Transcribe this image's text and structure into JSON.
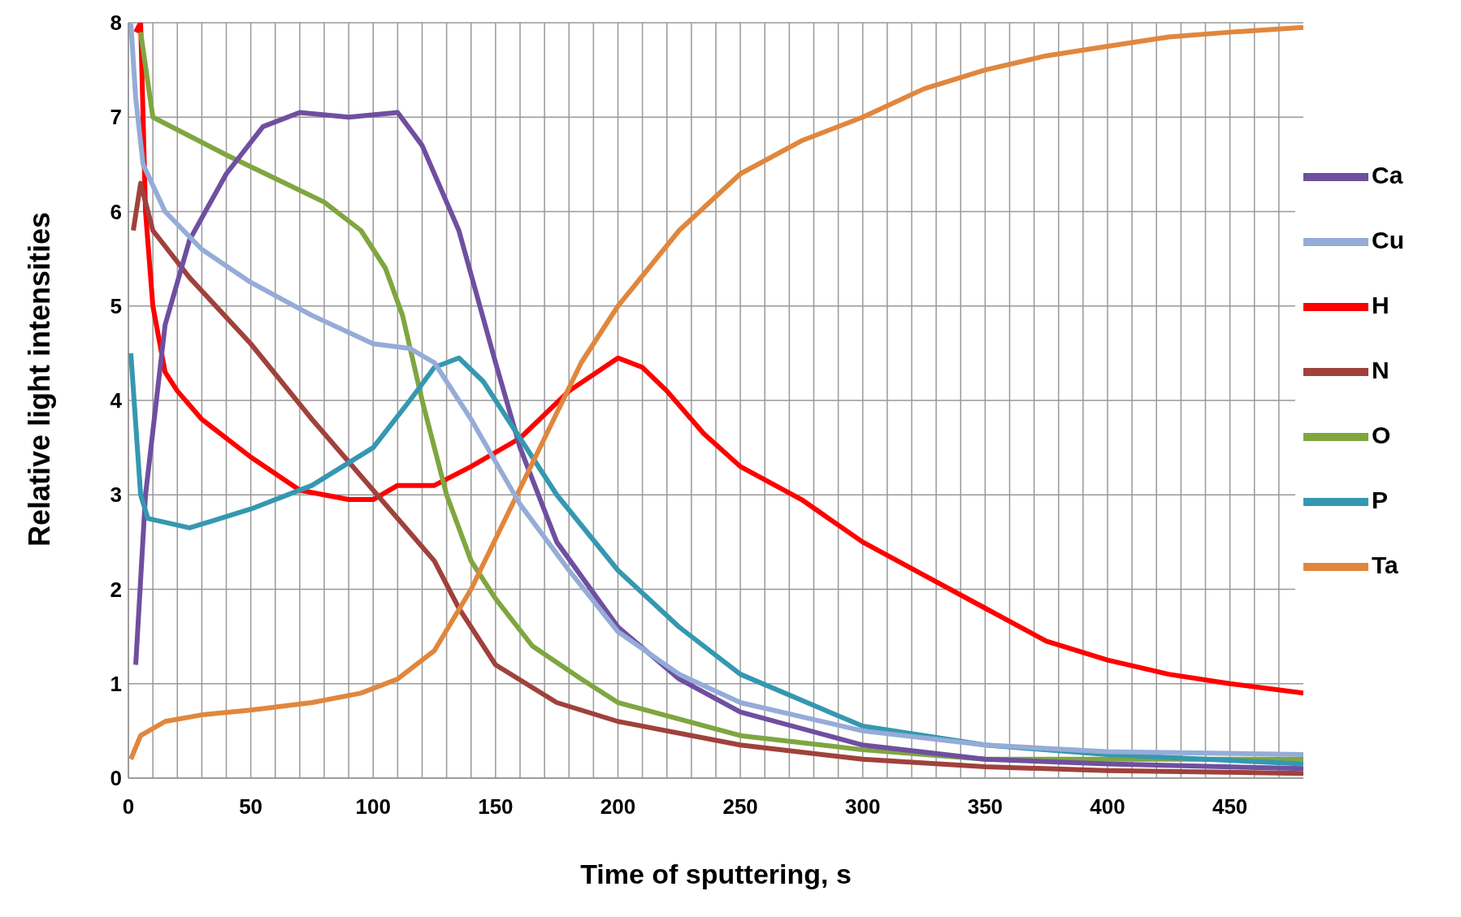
{
  "chart_data": {
    "type": "line",
    "xlabel": "Time of sputtering, s",
    "ylabel": "Relative light intensities",
    "xlim": [
      0,
      480
    ],
    "ylim": [
      0,
      8
    ],
    "xticks": [
      0,
      {
        "value": 10,
        "label": null
      },
      {
        "value": 20,
        "label": null
      },
      {
        "value": 30,
        "label": null
      },
      {
        "value": 40,
        "label": null
      },
      50,
      {
        "value": 60,
        "label": null
      },
      {
        "value": 70,
        "label": null
      },
      {
        "value": 80,
        "label": null
      },
      {
        "value": 90,
        "label": null
      },
      100,
      {
        "value": 110,
        "label": null
      },
      {
        "value": 120,
        "label": null
      },
      {
        "value": 130,
        "label": null
      },
      {
        "value": 140,
        "label": null
      },
      150,
      {
        "value": 160,
        "label": null
      },
      {
        "value": 170,
        "label": null
      },
      {
        "value": 180,
        "label": null
      },
      {
        "value": 190,
        "label": null
      },
      200,
      {
        "value": 210,
        "label": null
      },
      {
        "value": 220,
        "label": null
      },
      {
        "value": 230,
        "label": null
      },
      {
        "value": 240,
        "label": null
      },
      250,
      {
        "value": 260,
        "label": null
      },
      {
        "value": 270,
        "label": null
      },
      {
        "value": 280,
        "label": null
      },
      {
        "value": 290,
        "label": null
      },
      300,
      {
        "value": 310,
        "label": null
      },
      {
        "value": 320,
        "label": null
      },
      {
        "value": 330,
        "label": null
      },
      {
        "value": 340,
        "label": null
      },
      350,
      {
        "value": 360,
        "label": null
      },
      {
        "value": 370,
        "label": null
      },
      {
        "value": 380,
        "label": null
      },
      {
        "value": 390,
        "label": null
      },
      400,
      {
        "value": 410,
        "label": null
      },
      {
        "value": 420,
        "label": null
      },
      {
        "value": 430,
        "label": null
      },
      {
        "value": 440,
        "label": null
      },
      450,
      {
        "value": 460,
        "label": null
      },
      {
        "value": 470,
        "label": null
      }
    ],
    "yticks": [
      0,
      1,
      2,
      3,
      4,
      5,
      6,
      7,
      8
    ],
    "grid": true,
    "legend": "right",
    "marker": "none",
    "line_style": "solid",
    "series": [
      {
        "name": "H",
        "color": "#ff0000",
        "x": [
          3,
          5,
          7,
          10,
          15,
          20,
          30,
          50,
          70,
          90,
          100,
          110,
          125,
          140,
          160,
          180,
          200,
          210,
          220,
          235,
          250,
          275,
          300,
          325,
          350,
          375,
          400,
          425,
          450,
          480
        ],
        "values": [
          7.9,
          8,
          6.0,
          5.0,
          4.3,
          4.1,
          3.8,
          3.4,
          3.05,
          2.95,
          2.95,
          3.1,
          3.1,
          3.3,
          3.6,
          4.1,
          4.45,
          4.35,
          4.1,
          3.65,
          3.3,
          2.95,
          2.5,
          2.15,
          1.8,
          1.45,
          1.25,
          1.1,
          1.0,
          0.9
        ]
      },
      {
        "name": "N",
        "color": "#a0413c",
        "x": [
          2,
          5,
          10,
          25,
          50,
          75,
          100,
          115,
          125,
          135,
          150,
          175,
          200,
          250,
          300,
          350,
          400,
          480
        ],
        "values": [
          5.8,
          6.3,
          5.8,
          5.3,
          4.6,
          3.8,
          3.05,
          2.6,
          2.3,
          1.8,
          1.2,
          0.8,
          0.6,
          0.35,
          0.2,
          0.12,
          0.08,
          0.05
        ]
      },
      {
        "name": "O",
        "color": "#7fa640",
        "x": [
          5,
          10,
          25,
          40,
          60,
          80,
          95,
          105,
          112,
          120,
          130,
          140,
          150,
          165,
          185,
          200,
          250,
          300,
          350,
          480
        ],
        "values": [
          7.9,
          7.0,
          6.8,
          6.6,
          6.35,
          6.1,
          5.8,
          5.4,
          4.9,
          4.0,
          3.0,
          2.3,
          1.9,
          1.4,
          1.05,
          0.8,
          0.45,
          0.3,
          0.2,
          0.2
        ]
      },
      {
        "name": "Ca",
        "color": "#6f4fa0",
        "x": [
          3,
          7,
          15,
          25,
          40,
          55,
          70,
          90,
          110,
          120,
          135,
          150,
          160,
          175,
          200,
          225,
          250,
          300,
          350,
          400,
          480
        ],
        "values": [
          1.2,
          3.0,
          4.8,
          5.7,
          6.4,
          6.9,
          7.05,
          7.0,
          7.05,
          6.7,
          5.8,
          4.4,
          3.5,
          2.5,
          1.6,
          1.05,
          0.7,
          0.35,
          0.2,
          0.15,
          0.1
        ]
      },
      {
        "name": "P",
        "color": "#3598b0",
        "x": [
          1,
          5,
          8,
          25,
          50,
          75,
          100,
          115,
          125,
          135,
          145,
          155,
          175,
          200,
          225,
          250,
          300,
          350,
          400,
          480
        ],
        "values": [
          4.5,
          3.0,
          2.75,
          2.65,
          2.85,
          3.1,
          3.5,
          4.0,
          4.35,
          4.45,
          4.2,
          3.8,
          3.0,
          2.2,
          1.6,
          1.1,
          0.55,
          0.35,
          0.25,
          0.15
        ]
      },
      {
        "name": "Ta",
        "color": "#e0873e",
        "x": [
          1,
          5,
          15,
          30,
          50,
          75,
          95,
          110,
          125,
          140,
          155,
          170,
          185,
          200,
          225,
          250,
          275,
          300,
          325,
          350,
          375,
          400,
          425,
          450,
          480
        ],
        "values": [
          0.2,
          0.45,
          0.6,
          0.67,
          0.72,
          0.8,
          0.9,
          1.05,
          1.35,
          2.0,
          2.8,
          3.6,
          4.4,
          5.0,
          5.8,
          6.4,
          6.75,
          7.0,
          7.3,
          7.5,
          7.65,
          7.75,
          7.85,
          7.9,
          7.95
        ]
      },
      {
        "name": "Cu",
        "color": "#95acd8",
        "x": [
          1,
          3,
          6,
          15,
          30,
          50,
          75,
          100,
          115,
          125,
          140,
          160,
          180,
          200,
          225,
          250,
          300,
          350,
          400,
          480
        ],
        "values": [
          8,
          7.2,
          6.5,
          6.0,
          5.6,
          5.25,
          4.9,
          4.6,
          4.55,
          4.4,
          3.8,
          2.9,
          2.2,
          1.55,
          1.1,
          0.8,
          0.5,
          0.35,
          0.28,
          0.25
        ]
      }
    ]
  }
}
